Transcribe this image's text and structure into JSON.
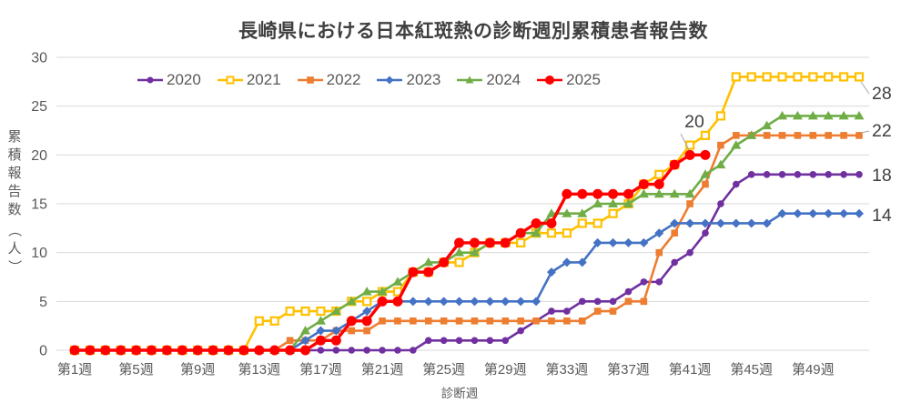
{
  "chart_data": {
    "type": "line",
    "title": "長崎県における日本紅斑熱の診断週別累積患者報告数",
    "x_label": "診断週",
    "y_label": "累積報告数（人）",
    "x_tick_weeks": [
      1,
      5,
      9,
      13,
      17,
      21,
      25,
      29,
      33,
      37,
      41,
      45,
      49
    ],
    "x_tick_labels": [
      "第1週",
      "第5週",
      "第9週",
      "第13週",
      "第17週",
      "第21週",
      "第25週",
      "第29週",
      "第33週",
      "第37週",
      "第41週",
      "第45週",
      "第49週"
    ],
    "y_ticks": [
      0,
      5,
      10,
      15,
      20,
      25,
      30
    ],
    "xlim": [
      1,
      52
    ],
    "ylim": [
      0,
      30
    ],
    "grid": true,
    "legend_position": "top-left",
    "series": [
      {
        "name": "2020",
        "color": "#7030A0",
        "marker": "circle",
        "end_label": "18",
        "values": [
          0,
          0,
          0,
          0,
          0,
          0,
          0,
          0,
          0,
          0,
          0,
          0,
          0,
          0,
          0,
          0,
          0,
          0,
          0,
          0,
          0,
          0,
          0,
          1,
          1,
          1,
          1,
          1,
          1,
          2,
          3,
          4,
          4,
          5,
          5,
          5,
          6,
          7,
          7,
          9,
          10,
          12,
          15,
          17,
          18,
          18,
          18,
          18,
          18,
          18,
          18,
          18
        ]
      },
      {
        "name": "2021",
        "color": "#FFC000",
        "marker": "open-square",
        "end_label": "28",
        "values": [
          0,
          0,
          0,
          0,
          0,
          0,
          0,
          0,
          0,
          0,
          0,
          0,
          3,
          3,
          4,
          4,
          4,
          4,
          5,
          5,
          6,
          6,
          8,
          8,
          9,
          9,
          10,
          11,
          11,
          11,
          12,
          12,
          12,
          13,
          13,
          14,
          15,
          17,
          18,
          19,
          21,
          22,
          24,
          28,
          28,
          28,
          28,
          28,
          28,
          28,
          28,
          28
        ]
      },
      {
        "name": "2022",
        "color": "#ED7D31",
        "marker": "square",
        "end_label": "22",
        "values": [
          0,
          0,
          0,
          0,
          0,
          0,
          0,
          0,
          0,
          0,
          0,
          0,
          0,
          0,
          1,
          1,
          1,
          2,
          2,
          2,
          3,
          3,
          3,
          3,
          3,
          3,
          3,
          3,
          3,
          3,
          3,
          3,
          3,
          3,
          4,
          4,
          5,
          5,
          10,
          12,
          15,
          17,
          21,
          22,
          22,
          22,
          22,
          22,
          22,
          22,
          22,
          22
        ]
      },
      {
        "name": "2023",
        "color": "#4472C4",
        "marker": "diamond",
        "end_label": "14",
        "values": [
          0,
          0,
          0,
          0,
          0,
          0,
          0,
          0,
          0,
          0,
          0,
          0,
          0,
          0,
          0,
          1,
          2,
          2,
          3,
          4,
          5,
          5,
          5,
          5,
          5,
          5,
          5,
          5,
          5,
          5,
          5,
          8,
          9,
          9,
          11,
          11,
          11,
          11,
          12,
          13,
          13,
          13,
          13,
          13,
          13,
          13,
          14,
          14,
          14,
          14,
          14,
          14
        ]
      },
      {
        "name": "2024",
        "color": "#70AD47",
        "marker": "triangle",
        "end_label": null,
        "values": [
          0,
          0,
          0,
          0,
          0,
          0,
          0,
          0,
          0,
          0,
          0,
          0,
          0,
          0,
          0,
          2,
          3,
          4,
          5,
          6,
          6,
          7,
          8,
          9,
          9,
          10,
          10,
          11,
          11,
          12,
          12,
          14,
          14,
          14,
          15,
          15,
          15,
          16,
          16,
          16,
          16,
          18,
          19,
          21,
          22,
          23,
          24,
          24,
          24,
          24,
          24,
          24
        ]
      },
      {
        "name": "2025",
        "color": "#FF0000",
        "marker": "circle-large",
        "end_label": null,
        "values": [
          0,
          0,
          0,
          0,
          0,
          0,
          0,
          0,
          0,
          0,
          0,
          0,
          0,
          0,
          0,
          0,
          1,
          1,
          3,
          3,
          5,
          5,
          8,
          8,
          9,
          11,
          11,
          11,
          11,
          12,
          13,
          13,
          16,
          16,
          16,
          16,
          16,
          17,
          17,
          19,
          20,
          20
        ]
      }
    ],
    "annotation": {
      "text": "20",
      "series": "2025",
      "week": 41,
      "value": 20
    }
  }
}
